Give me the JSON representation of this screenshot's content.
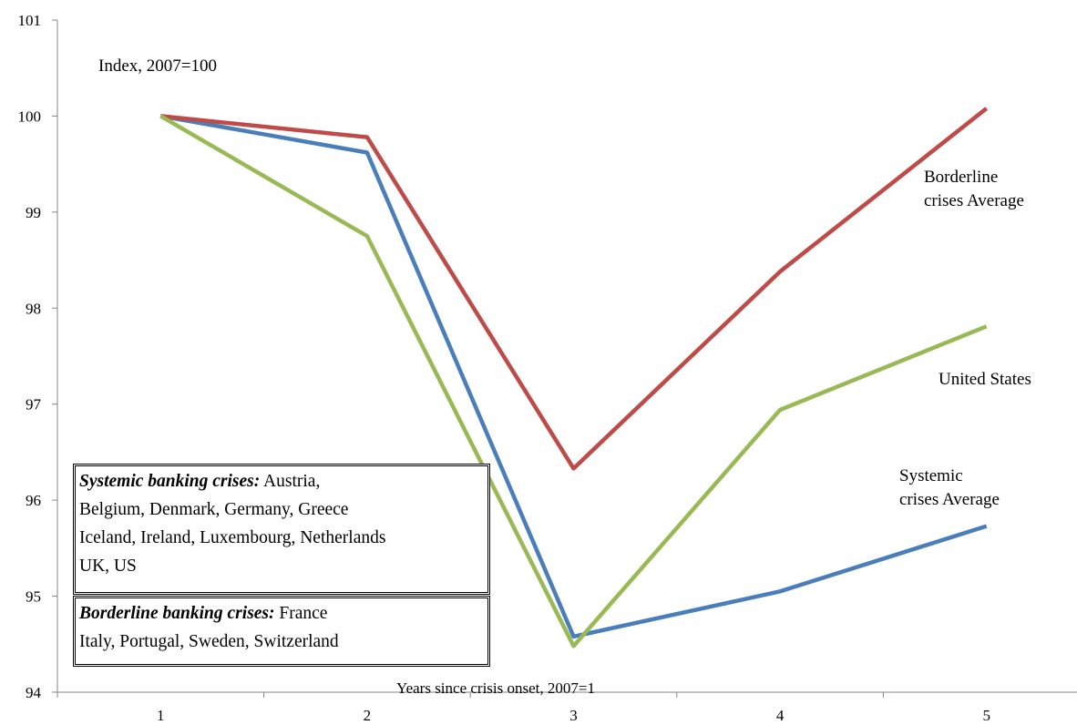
{
  "chart_data": {
    "type": "line",
    "x": [
      1,
      2,
      3,
      4,
      5
    ],
    "xlabel": "Years since crisis onset, 2007=1",
    "ylabel": "Index, 2007=100",
    "ylim": [
      94,
      101
    ],
    "yticks": [
      94,
      95,
      96,
      97,
      98,
      99,
      100,
      101
    ],
    "grid": false,
    "series": [
      {
        "name": "Systemic crises Average",
        "color": "#4a7ebb",
        "values": [
          100,
          99.62,
          94.58,
          95.05,
          95.73
        ]
      },
      {
        "name": "Borderline crises Average",
        "color": "#be4b48",
        "values": [
          100,
          99.78,
          96.33,
          98.38,
          100.08
        ]
      },
      {
        "name": "United States",
        "color": "#98b954",
        "values": [
          100,
          98.75,
          94.48,
          96.94,
          97.81
        ]
      }
    ],
    "series_labels": {
      "borderline_line1": "Borderline",
      "borderline_line2": "crises Average",
      "us": "United States",
      "systemic_line1": "Systemic",
      "systemic_line2": "crises Average"
    },
    "legend_boxes": {
      "systemic_title": "Systemic banking crises:",
      "systemic_text1": " Austria,",
      "systemic_text2": "Belgium, Denmark, Germany, Greece",
      "systemic_text3": "Iceland, Ireland, Luxembourg, Netherlands",
      "systemic_text4": "UK, US",
      "borderline_title": "Borderline banking crises:",
      "borderline_text1": " France",
      "borderline_text2": "Italy, Portugal, Sweden, Switzerland"
    }
  }
}
